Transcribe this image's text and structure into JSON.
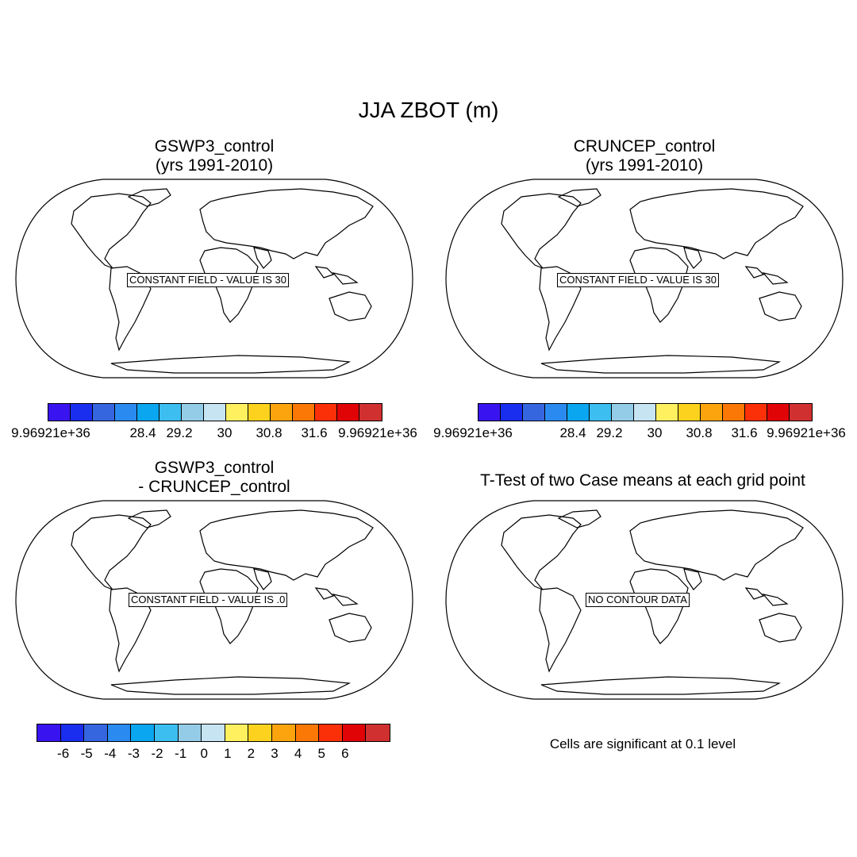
{
  "main_title": "JJA ZBOT (m)",
  "colors": {
    "palette": [
      "#3a14f0",
      "#1a2ef0",
      "#3566e0",
      "#2a8af0",
      "#0aa6f0",
      "#3cbef0",
      "#94cce8",
      "#c6e4f2",
      "#fff060",
      "#fcd21e",
      "#fca40e",
      "#fc7806",
      "#fc3008",
      "#e00406",
      "#d03030"
    ]
  },
  "panels": {
    "p1": {
      "title_line1": "GSWP3_control",
      "title_line2": "(yrs 1991-2010)",
      "field_label": "CONSTANT FIELD - VALUE IS 30"
    },
    "p2": {
      "title_line1": "CRUNCEP_control",
      "title_line2": "(yrs 1991-2010)",
      "field_label": "CONSTANT FIELD - VALUE IS 30"
    },
    "p3": {
      "title_line1": "GSWP3_control",
      "title_line2": "- CRUNCEP_control",
      "field_label": "CONSTANT FIELD - VALUE IS .0"
    },
    "p4": {
      "title_line1": "T-Test of two Case means at each grid point",
      "field_label": "NO CONTOUR DATA",
      "note": "Cells are significant at 0.1 level"
    }
  },
  "colorbars": {
    "abs": {
      "tick_labels": [
        "9.96921e+36",
        "28.4",
        "29.2",
        "30",
        "30.8",
        "31.6",
        "9.96921e+36"
      ]
    },
    "diff": {
      "tick_labels": [
        "-6",
        "-5",
        "-4",
        "-3",
        "-2",
        "-1",
        "0",
        "1",
        "2",
        "3",
        "4",
        "5",
        "6"
      ]
    }
  }
}
